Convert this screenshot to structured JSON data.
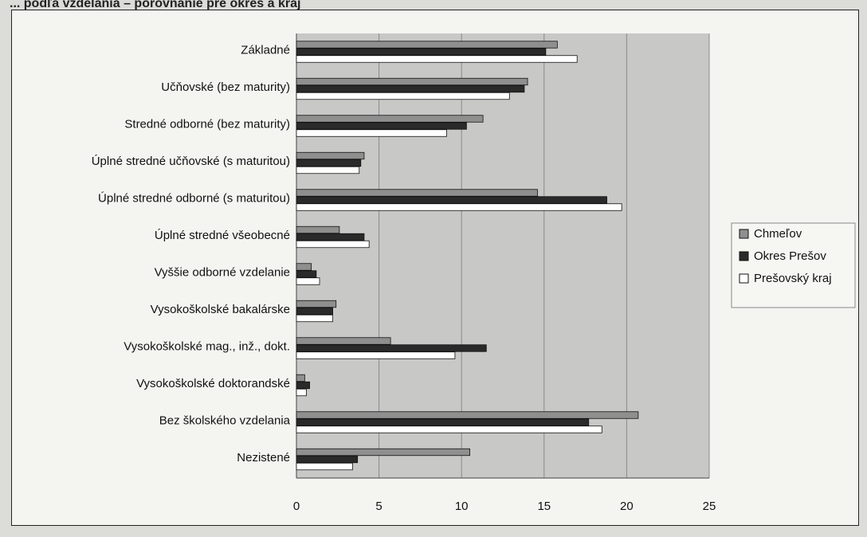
{
  "chart_data": {
    "type": "bar",
    "orientation": "horizontal",
    "title": "... podľa vzdelania – porovnanie pre okres a kraj",
    "xlabel": "",
    "ylabel": "",
    "xlim": [
      0,
      25
    ],
    "ticks": [
      "0",
      "5",
      "10",
      "15",
      "20",
      "25"
    ],
    "grid": true,
    "legend_position": "right",
    "categories": [
      "Základné",
      "Učňovské (bez maturity)",
      "Stredné odborné (bez maturity)",
      "Úplné stredné učňovské (s maturitou)",
      "Úplné stredné odborné (s maturitou)",
      "Úplné stredné všeobecné",
      "Vyššie odborné vzdelanie",
      "Vysokoškolské bakalárske",
      "Vysokoškolské mag., inž., dokt.",
      "Vysokoškolské doktorandské",
      "Bez školského vzdelania",
      "Nezistené"
    ],
    "series": [
      {
        "name": "Chmeľov",
        "color": "#8f8f8f",
        "values": [
          15.8,
          14.0,
          11.3,
          4.1,
          14.6,
          2.6,
          0.9,
          2.4,
          5.7,
          0.5,
          20.7,
          10.5
        ]
      },
      {
        "name": "Okres Prešov",
        "color": "#2a2a2a",
        "values": [
          15.1,
          13.8,
          10.3,
          3.9,
          18.8,
          4.1,
          1.2,
          2.2,
          11.5,
          0.8,
          17.7,
          3.7
        ]
      },
      {
        "name": "Prešovský kraj",
        "color": "#ffffff",
        "values": [
          17.0,
          12.9,
          9.1,
          3.8,
          19.7,
          4.4,
          1.4,
          2.2,
          9.6,
          0.6,
          18.5,
          3.4
        ]
      }
    ]
  }
}
